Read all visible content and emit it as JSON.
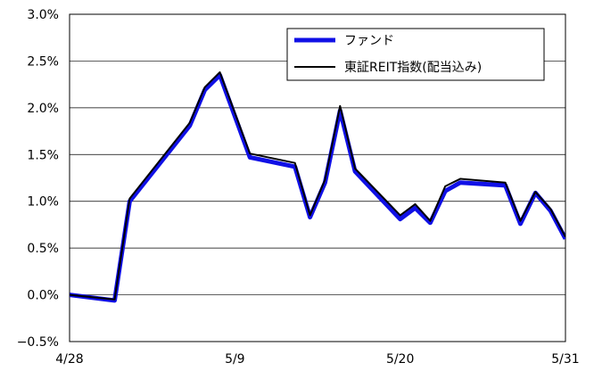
{
  "chart_data": {
    "type": "line",
    "x_ticks": [
      "4/28",
      "5/9",
      "5/20",
      "5/31"
    ],
    "y_ticks": [
      "3.0%",
      "2.5%",
      "2.0%",
      "1.5%",
      "1.0%",
      "0.5%",
      "0.0%",
      "−0.5%"
    ],
    "ylim": [
      -0.5,
      3.0
    ],
    "xlim": [
      "4/28",
      "5/31"
    ],
    "grid": "horizontal",
    "legend_position": "top-right",
    "x": [
      "4/28",
      "5/1",
      "5/2",
      "5/6",
      "5/7",
      "5/8",
      "5/10",
      "5/13",
      "5/14",
      "5/15",
      "5/16",
      "5/17",
      "5/20",
      "5/21",
      "5/22",
      "5/23",
      "5/24",
      "5/27",
      "5/28",
      "5/29",
      "5/30",
      "5/31"
    ],
    "series": [
      {
        "name": "ファンド",
        "color": "#1010e6",
        "values": [
          0.0,
          -0.06,
          1.0,
          1.81,
          2.19,
          2.35,
          1.47,
          1.37,
          0.83,
          1.2,
          1.97,
          1.32,
          0.81,
          0.93,
          0.77,
          1.11,
          1.2,
          1.17,
          0.76,
          1.09,
          0.9,
          0.6
        ]
      },
      {
        "name": "東証REIT指数(配当込み)",
        "color": "#000000",
        "values": [
          0.0,
          -0.05,
          1.03,
          1.84,
          2.22,
          2.38,
          1.51,
          1.41,
          0.85,
          1.23,
          2.02,
          1.35,
          0.85,
          0.97,
          0.79,
          1.16,
          1.24,
          1.2,
          0.79,
          1.1,
          0.92,
          0.62
        ]
      }
    ]
  }
}
